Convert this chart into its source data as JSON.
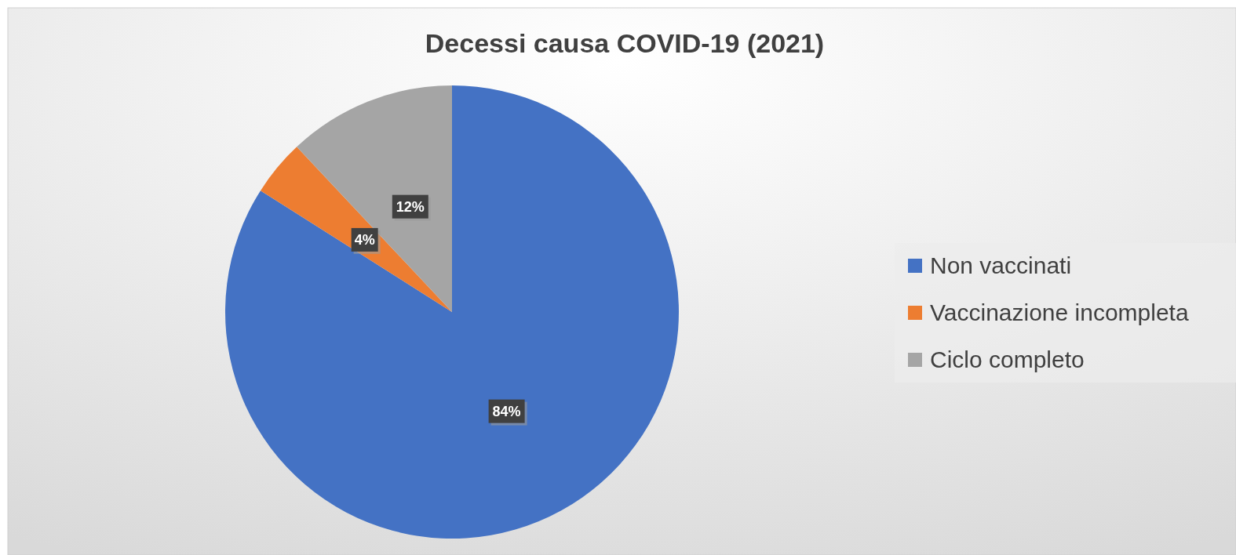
{
  "chart_data": {
    "type": "pie",
    "title": "Decessi causa COVID-19 (2021)",
    "categories": [
      "Non vaccinati",
      "Vaccinazione incompleta",
      "Ciclo completo"
    ],
    "values": [
      84,
      4,
      12
    ],
    "colors": [
      "#4472c4",
      "#ed7d31",
      "#a5a5a5"
    ],
    "value_labels": [
      "84%",
      "4%",
      "12%"
    ],
    "legend": "right"
  }
}
